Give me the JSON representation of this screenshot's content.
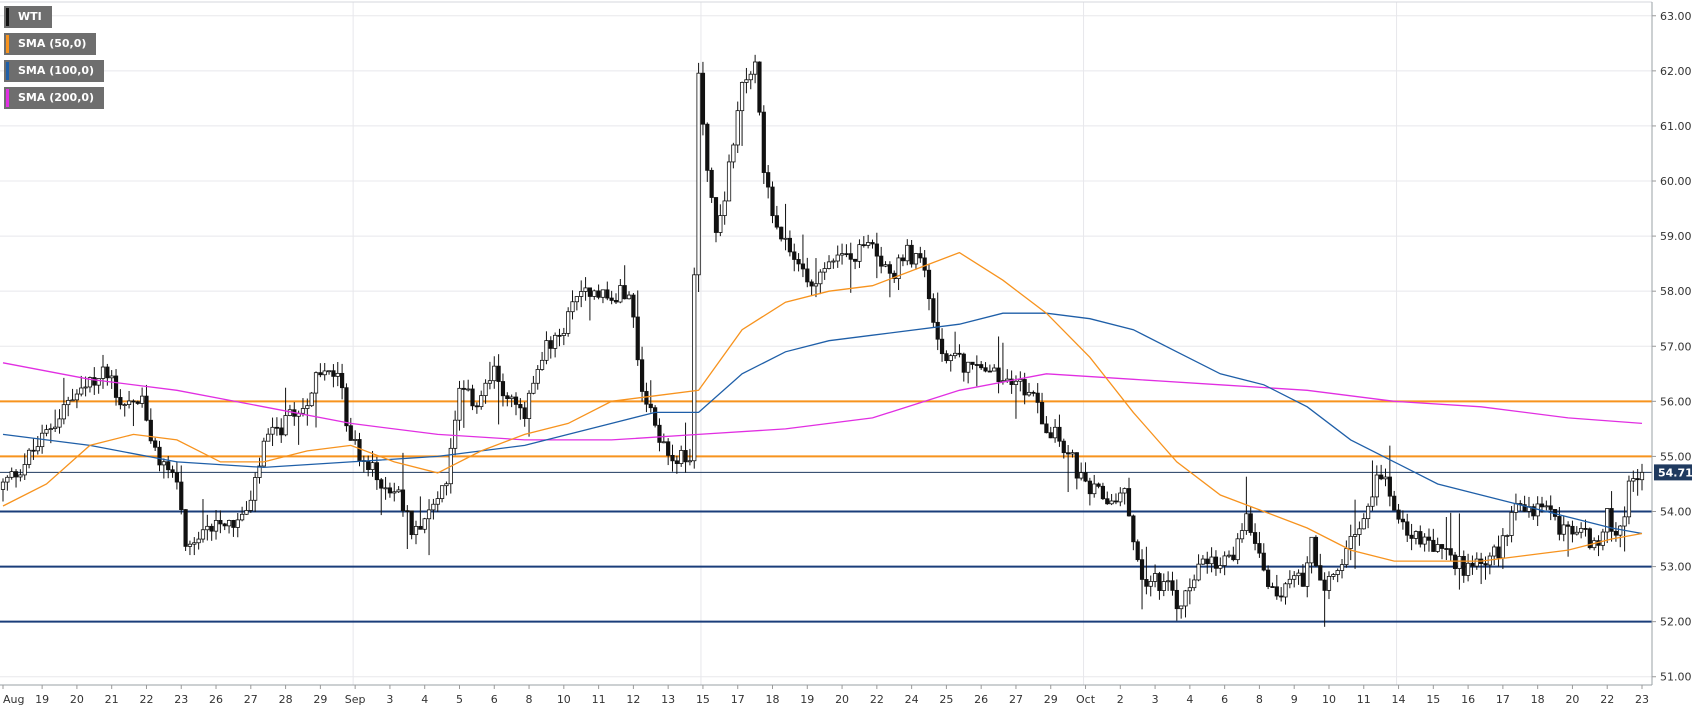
{
  "legend": [
    {
      "label": "WTI",
      "color": "#111111"
    },
    {
      "label": "SMA (50,0)",
      "color": "#f7931e"
    },
    {
      "label": "SMA (100,0)",
      "color": "#1f5fa8"
    },
    {
      "label": "SMA (200,0)",
      "color": "#e12fe2"
    }
  ],
  "colors": {
    "up_candle": "#ffffff",
    "down_candle": "#111111",
    "wick": "#111111",
    "sma50": "#f7931e",
    "sma100": "#1f5fa8",
    "sma200": "#e12fe2",
    "resistance": "#f7931e",
    "support": "#1a3d7a",
    "grid": "#e8e8ec",
    "last_price_bg": "#1f3a5f",
    "last_price_line": "#1f3a5f"
  },
  "chart_data": {
    "type": "candlestick",
    "y_axis": {
      "range": [
        50.85,
        63.25
      ],
      "ticks": [
        "51.00",
        "52.00",
        "53.00",
        "54.00",
        "55.00",
        "56.00",
        "57.00",
        "58.00",
        "59.00",
        "60.00",
        "61.00",
        "62.00",
        "63.00"
      ]
    },
    "x_axis": {
      "ticks": [
        {
          "label": "Aug",
          "i": 0
        },
        {
          "label": "19",
          "i": 9
        },
        {
          "label": "20",
          "i": 17
        },
        {
          "label": "21",
          "i": 25
        },
        {
          "label": "22",
          "i": 33
        },
        {
          "label": "23",
          "i": 41
        },
        {
          "label": "26",
          "i": 49
        },
        {
          "label": "27",
          "i": 57
        },
        {
          "label": "28",
          "i": 65
        },
        {
          "label": "29",
          "i": 73
        },
        {
          "label": "Sep",
          "i": 81
        },
        {
          "label": "3",
          "i": 89
        },
        {
          "label": "4",
          "i": 97
        },
        {
          "label": "5",
          "i": 105
        },
        {
          "label": "6",
          "i": 113
        },
        {
          "label": "8",
          "i": 121
        },
        {
          "label": "10",
          "i": 129
        },
        {
          "label": "11",
          "i": 137
        },
        {
          "label": "12",
          "i": 145
        },
        {
          "label": "13",
          "i": 153
        },
        {
          "label": "15",
          "i": 161
        },
        {
          "label": "17",
          "i": 169
        },
        {
          "label": "18",
          "i": 177
        },
        {
          "label": "19",
          "i": 185
        },
        {
          "label": "20",
          "i": 193
        },
        {
          "label": "22",
          "i": 201
        },
        {
          "label": "24",
          "i": 209
        },
        {
          "label": "25",
          "i": 217
        },
        {
          "label": "26",
          "i": 225
        },
        {
          "label": "27",
          "i": 233
        },
        {
          "label": "29",
          "i": 241
        },
        {
          "label": "Oct",
          "i": 249
        },
        {
          "label": "2",
          "i": 257
        },
        {
          "label": "3",
          "i": 265
        },
        {
          "label": "4",
          "i": 273
        },
        {
          "label": "6",
          "i": 281
        },
        {
          "label": "8",
          "i": 289
        },
        {
          "label": "9",
          "i": 297
        },
        {
          "label": "10",
          "i": 305
        },
        {
          "label": "11",
          "i": 313
        },
        {
          "label": "14",
          "i": 321
        },
        {
          "label": "15",
          "i": 329
        },
        {
          "label": "16",
          "i": 337
        },
        {
          "label": "17",
          "i": 345
        },
        {
          "label": "18",
          "i": 353
        },
        {
          "label": "20",
          "i": 361
        },
        {
          "label": "22",
          "i": 369
        },
        {
          "label": "23",
          "i": 377
        }
      ]
    },
    "candle_count": 378,
    "anchors": [
      [
        0,
        54.4
      ],
      [
        5,
        54.8
      ],
      [
        10,
        55.3
      ],
      [
        15,
        55.9
      ],
      [
        20,
        56.2
      ],
      [
        25,
        56.6
      ],
      [
        28,
        56.0
      ],
      [
        33,
        56.0
      ],
      [
        36,
        55.0
      ],
      [
        41,
        54.6
      ],
      [
        43,
        53.2
      ],
      [
        46,
        53.4
      ],
      [
        50,
        53.9
      ],
      [
        55,
        53.8
      ],
      [
        58,
        54.1
      ],
      [
        61,
        55.2
      ],
      [
        66,
        55.6
      ],
      [
        70,
        55.9
      ],
      [
        73,
        56.4
      ],
      [
        78,
        56.5
      ],
      [
        81,
        55.3
      ],
      [
        85,
        54.8
      ],
      [
        89,
        54.5
      ],
      [
        92,
        54.3
      ],
      [
        95,
        53.7
      ],
      [
        99,
        54.0
      ],
      [
        103,
        54.6
      ],
      [
        106,
        56.1
      ],
      [
        110,
        56.0
      ],
      [
        114,
        56.5
      ],
      [
        117,
        56.1
      ],
      [
        121,
        55.7
      ],
      [
        125,
        56.9
      ],
      [
        129,
        57.1
      ],
      [
        133,
        58.0
      ],
      [
        137,
        58.1
      ],
      [
        141,
        57.8
      ],
      [
        145,
        58.1
      ],
      [
        148,
        56.1
      ],
      [
        152,
        55.4
      ],
      [
        155,
        55.0
      ],
      [
        159,
        54.9
      ],
      [
        161,
        61.9
      ],
      [
        163,
        60.3
      ],
      [
        165,
        59.0
      ],
      [
        168,
        60.2
      ],
      [
        171,
        61.9
      ],
      [
        174,
        62.0
      ],
      [
        176,
        60.3
      ],
      [
        179,
        59.0
      ],
      [
        182,
        58.7
      ],
      [
        186,
        58.2
      ],
      [
        190,
        58.4
      ],
      [
        193,
        58.7
      ],
      [
        197,
        58.6
      ],
      [
        201,
        59.0
      ],
      [
        205,
        58.2
      ],
      [
        209,
        58.7
      ],
      [
        213,
        58.4
      ],
      [
        216,
        57.0
      ],
      [
        221,
        56.7
      ],
      [
        225,
        56.6
      ],
      [
        229,
        56.5
      ],
      [
        233,
        56.3
      ],
      [
        237,
        56.2
      ],
      [
        241,
        55.6
      ],
      [
        245,
        55.2
      ],
      [
        247,
        54.9
      ],
      [
        250,
        54.4
      ],
      [
        253,
        54.3
      ],
      [
        255,
        54.2
      ],
      [
        259,
        54.3
      ],
      [
        261,
        53.6
      ],
      [
        263,
        52.7
      ],
      [
        266,
        52.8
      ],
      [
        269,
        52.6
      ],
      [
        272,
        52.2
      ],
      [
        275,
        52.9
      ],
      [
        278,
        53.0
      ],
      [
        281,
        53.0
      ],
      [
        284,
        53.2
      ],
      [
        287,
        54.0
      ],
      [
        290,
        53.3
      ],
      [
        293,
        52.5
      ],
      [
        296,
        52.6
      ],
      [
        300,
        52.8
      ],
      [
        302,
        53.5
      ],
      [
        305,
        52.5
      ],
      [
        309,
        53.1
      ],
      [
        312,
        53.6
      ],
      [
        316,
        54.4
      ],
      [
        318,
        54.6
      ],
      [
        321,
        54.2
      ],
      [
        325,
        53.5
      ],
      [
        329,
        53.4
      ],
      [
        333,
        53.2
      ],
      [
        337,
        53.0
      ],
      [
        341,
        53.2
      ],
      [
        345,
        53.2
      ],
      [
        348,
        54.0
      ],
      [
        352,
        54.0
      ],
      [
        355,
        54.1
      ],
      [
        358,
        53.8
      ],
      [
        361,
        53.6
      ],
      [
        364,
        53.7
      ],
      [
        367,
        53.3
      ],
      [
        370,
        53.9
      ],
      [
        373,
        53.6
      ],
      [
        375,
        54.5
      ],
      [
        377,
        54.71
      ]
    ],
    "sma50_points": [
      [
        0,
        54.1
      ],
      [
        10,
        54.5
      ],
      [
        20,
        55.2
      ],
      [
        30,
        55.4
      ],
      [
        40,
        55.3
      ],
      [
        50,
        54.9
      ],
      [
        60,
        54.9
      ],
      [
        70,
        55.1
      ],
      [
        80,
        55.2
      ],
      [
        90,
        54.9
      ],
      [
        100,
        54.7
      ],
      [
        110,
        55.1
      ],
      [
        120,
        55.4
      ],
      [
        130,
        55.6
      ],
      [
        140,
        56.0
      ],
      [
        150,
        56.1
      ],
      [
        160,
        56.2
      ],
      [
        170,
        57.3
      ],
      [
        180,
        57.8
      ],
      [
        190,
        58.0
      ],
      [
        200,
        58.1
      ],
      [
        210,
        58.4
      ],
      [
        220,
        58.7
      ],
      [
        230,
        58.2
      ],
      [
        240,
        57.6
      ],
      [
        250,
        56.8
      ],
      [
        260,
        55.8
      ],
      [
        270,
        54.9
      ],
      [
        280,
        54.3
      ],
      [
        290,
        54.0
      ],
      [
        300,
        53.7
      ],
      [
        310,
        53.3
      ],
      [
        320,
        53.1
      ],
      [
        330,
        53.1
      ],
      [
        340,
        53.1
      ],
      [
        350,
        53.2
      ],
      [
        360,
        53.3
      ],
      [
        370,
        53.5
      ],
      [
        377,
        53.6
      ]
    ],
    "sma100_points": [
      [
        0,
        55.4
      ],
      [
        20,
        55.2
      ],
      [
        40,
        54.9
      ],
      [
        60,
        54.8
      ],
      [
        80,
        54.9
      ],
      [
        100,
        55.0
      ],
      [
        120,
        55.2
      ],
      [
        140,
        55.6
      ],
      [
        150,
        55.8
      ],
      [
        160,
        55.8
      ],
      [
        170,
        56.5
      ],
      [
        180,
        56.9
      ],
      [
        190,
        57.1
      ],
      [
        200,
        57.2
      ],
      [
        220,
        57.4
      ],
      [
        230,
        57.6
      ],
      [
        240,
        57.6
      ],
      [
        250,
        57.5
      ],
      [
        260,
        57.3
      ],
      [
        270,
        56.9
      ],
      [
        280,
        56.5
      ],
      [
        290,
        56.3
      ],
      [
        300,
        55.9
      ],
      [
        310,
        55.3
      ],
      [
        320,
        54.9
      ],
      [
        330,
        54.5
      ],
      [
        340,
        54.3
      ],
      [
        350,
        54.1
      ],
      [
        360,
        53.9
      ],
      [
        370,
        53.7
      ],
      [
        377,
        53.6
      ]
    ],
    "sma200_points": [
      [
        0,
        56.7
      ],
      [
        20,
        56.4
      ],
      [
        40,
        56.2
      ],
      [
        60,
        55.9
      ],
      [
        80,
        55.6
      ],
      [
        100,
        55.4
      ],
      [
        120,
        55.3
      ],
      [
        140,
        55.3
      ],
      [
        160,
        55.4
      ],
      [
        180,
        55.5
      ],
      [
        200,
        55.7
      ],
      [
        220,
        56.2
      ],
      [
        240,
        56.5
      ],
      [
        260,
        56.4
      ],
      [
        280,
        56.3
      ],
      [
        300,
        56.2
      ],
      [
        320,
        56.0
      ],
      [
        340,
        55.9
      ],
      [
        360,
        55.7
      ],
      [
        377,
        55.6
      ]
    ],
    "resistance_levels": [
      55.0,
      56.0
    ],
    "support_levels": [
      52.0,
      53.0,
      54.0
    ],
    "last_price": {
      "value": 54.71,
      "label": "54.71"
    }
  }
}
